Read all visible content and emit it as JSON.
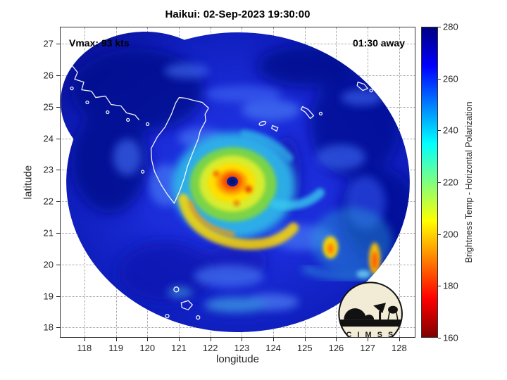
{
  "title": "Haikui: 02-Sep-2023 19:30:00",
  "annotations": {
    "vmax": "Vmax: 93 kts",
    "time_to_pass": "01:30 away"
  },
  "axes": {
    "xlabel": "longitude",
    "ylabel": "latitude",
    "x_ticks": [
      118,
      119,
      120,
      121,
      122,
      123,
      124,
      125,
      126,
      127,
      128
    ],
    "y_ticks": [
      18,
      19,
      20,
      21,
      22,
      23,
      24,
      25,
      26,
      27
    ]
  },
  "colorbar": {
    "label": "Brightness Temp - Horizontal Polarization",
    "ticks": [
      160,
      180,
      200,
      220,
      240,
      260,
      280
    ],
    "min": 160,
    "max": 280,
    "colors": [
      "#000080",
      "#0000ff",
      "#00ffff",
      "#ffff00",
      "#ff0000",
      "#800000"
    ],
    "positions_pct": [
      0,
      12.5,
      37.5,
      62.5,
      87.5,
      100
    ]
  },
  "logo": {
    "text": "C I M S S"
  },
  "chart_data": {
    "type": "heatmap",
    "title": "Haikui: 02-Sep-2023 19:30:00",
    "xlabel": "longitude",
    "ylabel": "latitude",
    "x_range": [
      117.2,
      128.5
    ],
    "y_range": [
      17.7,
      27.5
    ],
    "grid": "dotted, on",
    "value_label": "Brightness Temp - Horizontal Polarization (K)",
    "value_range": [
      160,
      280
    ],
    "colormap": "jet reversed (280 K dark blue at top of bar, 160 K dark red at bottom)",
    "storm": {
      "name": "Haikui",
      "timestamp": "02-Sep-2023 19:30:00",
      "vmax_kts": 93,
      "overpass_offset": "01:30 away",
      "center_lon": 123.0,
      "center_lat": 22.5
    },
    "swath": {
      "shape": "circular microwave overpass footprint with extra lobe to northwest",
      "center_lon": 123.0,
      "center_lat": 22.6,
      "radius_deg": 5.4,
      "background_temp_K": 265
    },
    "features": [
      {
        "name": "eye (dark blue spot)",
        "lon": 123.0,
        "lat": 22.6,
        "temp_K": 272
      },
      {
        "name": "eyewall ring (orange/red)",
        "lon": 123.0,
        "lat": 22.5,
        "temp_K": 175
      },
      {
        "name": "inner rainbands (yellow/green)",
        "lon": 122.7,
        "lat": 22.1,
        "temp_K": 205
      },
      {
        "name": "cyan convective shield",
        "lon": 123.0,
        "lat": 22.5,
        "temp_K": 238
      },
      {
        "name": "southern yellow rainband arm",
        "lon": 122.8,
        "lat": 21.3,
        "temp_K": 210
      },
      {
        "name": "southeast rainband cell (yellow/orange)",
        "lon": 125.8,
        "lat": 20.4,
        "temp_K": 198
      },
      {
        "name": "far southeast convective streak",
        "lon": 127.1,
        "lat": 20.3,
        "temp_K": 190
      }
    ],
    "map_overlays": [
      "Taiwan coastline",
      "SE China coast",
      "Ryukyu Islands",
      "Batanes/Babuyan Islands",
      "CIMSS logo"
    ]
  }
}
